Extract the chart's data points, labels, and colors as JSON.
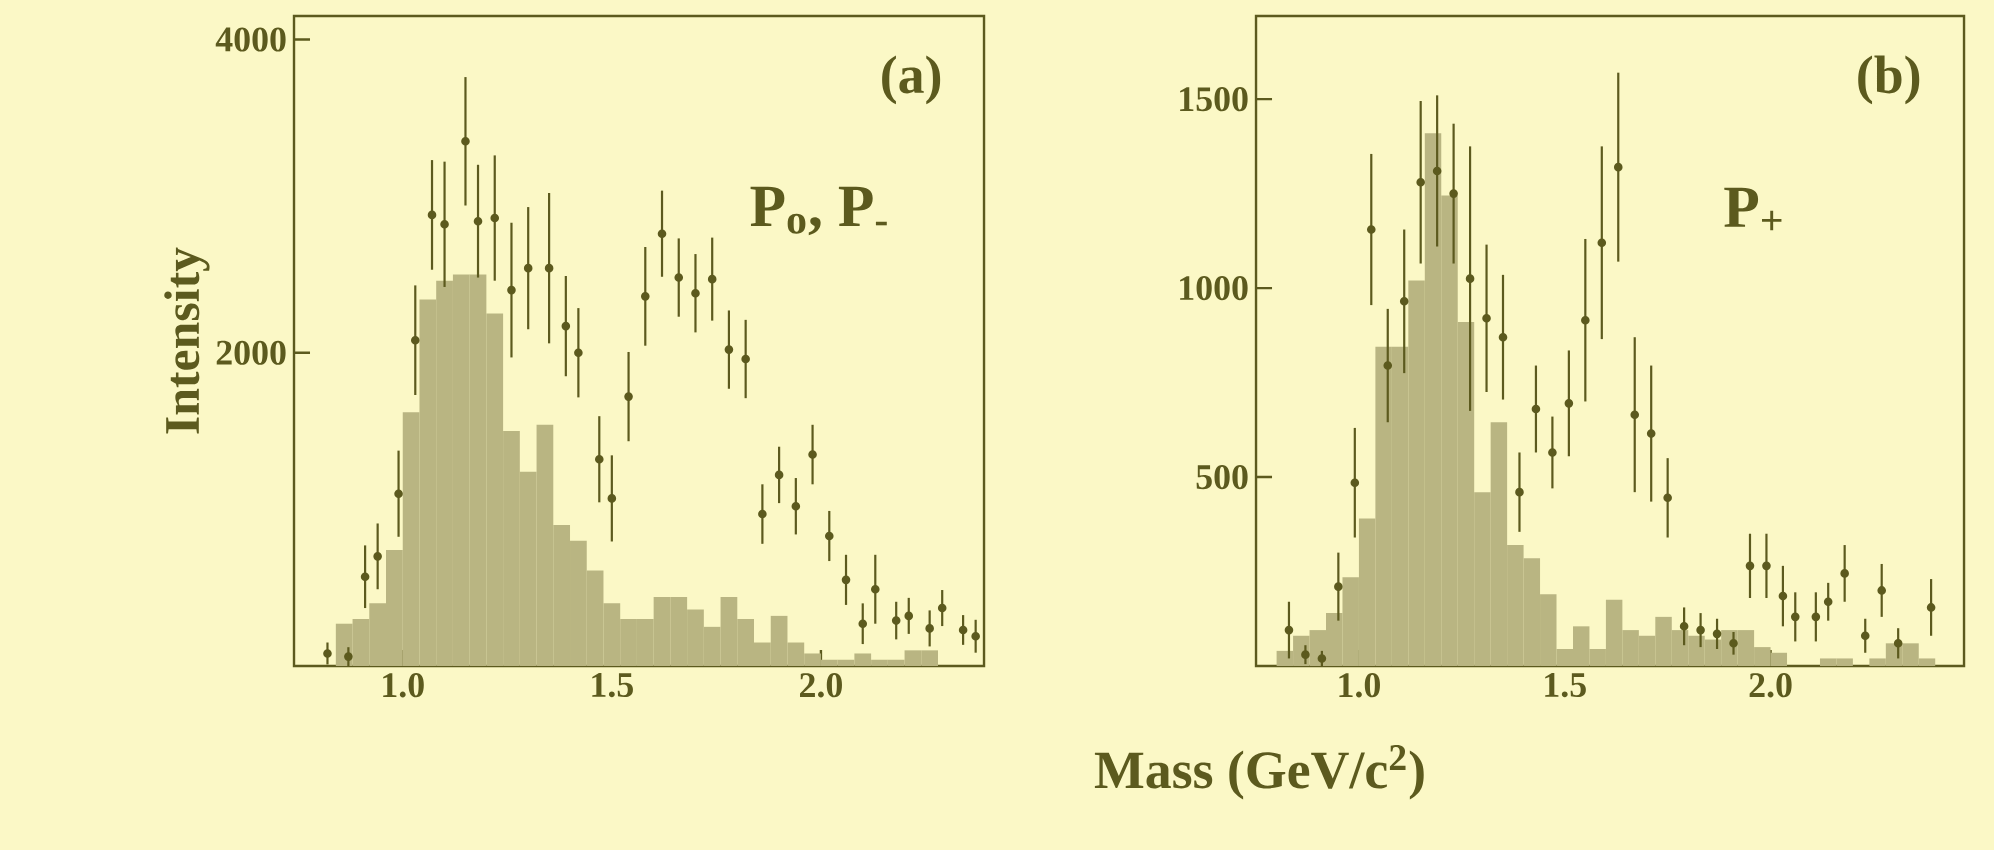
{
  "chart_data": [
    {
      "type": "histogram",
      "marker": "circle",
      "ylabel": "Intensity",
      "xlabel": "Mass  (GeV/c$^{2}$)",
      "annotations": [
        "(a)",
        "P$_{o}$, P$_{-}$"
      ],
      "xlim": [
        0.74,
        2.39
      ],
      "ylim": [
        0,
        4150
      ],
      "xticks": [
        {
          "value": 1.0,
          "label": "1.0"
        },
        {
          "value": 1.5,
          "label": "1.5"
        },
        {
          "value": 2.0,
          "label": "2.0"
        }
      ],
      "yticks": [
        2000,
        4000
      ],
      "series": [
        {
          "color": "#b9b582",
          "bins": [
            0.8,
            0.84,
            0.88,
            0.92,
            0.96,
            1.0,
            1.04,
            1.08,
            1.12,
            1.16,
            1.2,
            1.24,
            1.28,
            1.32,
            1.36,
            1.4,
            1.44,
            1.48,
            1.52,
            1.56,
            1.6,
            1.64,
            1.68,
            1.72,
            1.76,
            1.8,
            1.84,
            1.88,
            1.92,
            1.96,
            2.0,
            2.04,
            2.08,
            2.12,
            2.16,
            2.2,
            2.24,
            2.28,
            2.32,
            2.36
          ],
          "values": [
            0,
            270,
            300,
            400,
            740,
            1620,
            2340,
            2460,
            2500,
            2500,
            2250,
            1500,
            1240,
            1540,
            900,
            800,
            610,
            400,
            300,
            300,
            440,
            440,
            360,
            250,
            440,
            300,
            150,
            320,
            150,
            80,
            40,
            40,
            80,
            40,
            40,
            100,
            100,
            0,
            0
          ]
        },
        {
          "type": "scatter",
          "color": "#5c5a1e",
          "x": [
            0.82,
            0.87,
            0.91,
            0.94,
            0.99,
            1.03,
            1.07,
            1.1,
            1.15,
            1.18,
            1.22,
            1.26,
            1.3,
            1.35,
            1.39,
            1.42,
            1.47,
            1.5,
            1.54,
            1.58,
            1.62,
            1.66,
            1.7,
            1.74,
            1.78,
            1.82,
            1.86,
            1.9,
            1.94,
            1.98,
            2.02,
            2.06,
            2.1,
            2.13,
            2.18,
            2.21,
            2.26,
            2.29,
            2.34,
            2.37
          ],
          "values": [
            80,
            60,
            570,
            700,
            1100,
            2080,
            2880,
            2820,
            3350,
            2840,
            2860,
            2400,
            2540,
            2540,
            2170,
            2000,
            1320,
            1070,
            1720,
            2360,
            2760,
            2480,
            2380,
            2470,
            2020,
            1960,
            970,
            1220,
            1020,
            1350,
            830,
            550,
            270,
            490,
            290,
            320,
            240,
            370,
            230,
            190
          ],
          "errors": [
            70,
            60,
            200,
            210,
            275,
            350,
            350,
            400,
            410,
            360,
            400,
            430,
            390,
            480,
            320,
            285,
            275,
            275,
            285,
            315,
            275,
            250,
            250,
            265,
            250,
            250,
            190,
            180,
            180,
            190,
            160,
            160,
            130,
            220,
            120,
            115,
            115,
            115,
            95,
            105
          ]
        }
      ]
    },
    {
      "type": "histogram",
      "marker": "circle",
      "annotations": [
        "(b)",
        "P$_{+}$"
      ],
      "xlim": [
        0.75,
        2.47
      ],
      "ylim": [
        0,
        1720
      ],
      "xticks": [
        {
          "value": 1.0,
          "label": "1.0"
        },
        {
          "value": 1.5,
          "label": "1.5"
        },
        {
          "value": 2.0,
          "label": "2.0"
        }
      ],
      "yticks": [
        500,
        1000,
        1500
      ],
      "series": [
        {
          "color": "#b9b582",
          "bins": [
            0.8,
            0.84,
            0.88,
            0.92,
            0.96,
            1.0,
            1.04,
            1.08,
            1.12,
            1.16,
            1.2,
            1.24,
            1.28,
            1.32,
            1.36,
            1.4,
            1.44,
            1.48,
            1.52,
            1.56,
            1.6,
            1.64,
            1.68,
            1.72,
            1.76,
            1.8,
            1.84,
            1.88,
            1.92,
            1.96,
            2.0,
            2.04,
            2.08,
            2.12,
            2.16,
            2.2,
            2.24,
            2.28,
            2.32,
            2.36,
            2.4
          ],
          "values": [
            40,
            80,
            95,
            140,
            235,
            390,
            845,
            845,
            1020,
            1410,
            1245,
            910,
            460,
            645,
            320,
            285,
            190,
            45,
            105,
            45,
            175,
            95,
            80,
            130,
            95,
            80,
            70,
            95,
            95,
            50,
            35,
            0,
            0,
            20,
            20,
            0,
            20,
            60,
            60,
            20
          ]
        },
        {
          "type": "scatter",
          "color": "#5c5a1e",
          "x": [
            0.83,
            0.87,
            0.91,
            0.95,
            0.99,
            1.03,
            1.07,
            1.11,
            1.15,
            1.19,
            1.23,
            1.27,
            1.31,
            1.35,
            1.39,
            1.43,
            1.47,
            1.51,
            1.55,
            1.59,
            1.63,
            1.67,
            1.71,
            1.75,
            1.79,
            1.83,
            1.87,
            1.91,
            1.95,
            1.99,
            2.03,
            2.06,
            2.11,
            2.14,
            2.18,
            2.23,
            2.27,
            2.31,
            2.39
          ],
          "values": [
            95,
            30,
            20,
            210,
            485,
            1155,
            795,
            965,
            1280,
            1310,
            1250,
            1025,
            920,
            870,
            460,
            680,
            565,
            695,
            915,
            1120,
            1320,
            665,
            615,
            445,
            105,
            95,
            85,
            60,
            265,
            265,
            185,
            130,
            130,
            170,
            245,
            80,
            200,
            60,
            155
          ],
          "errors": [
            75,
            25,
            20,
            90,
            145,
            200,
            150,
            190,
            215,
            200,
            185,
            350,
            195,
            165,
            105,
            115,
            95,
            140,
            215,
            255,
            250,
            205,
            180,
            105,
            50,
            45,
            40,
            30,
            85,
            85,
            80,
            65,
            65,
            50,
            75,
            45,
            70,
            40,
            75
          ]
        }
      ]
    }
  ]
}
